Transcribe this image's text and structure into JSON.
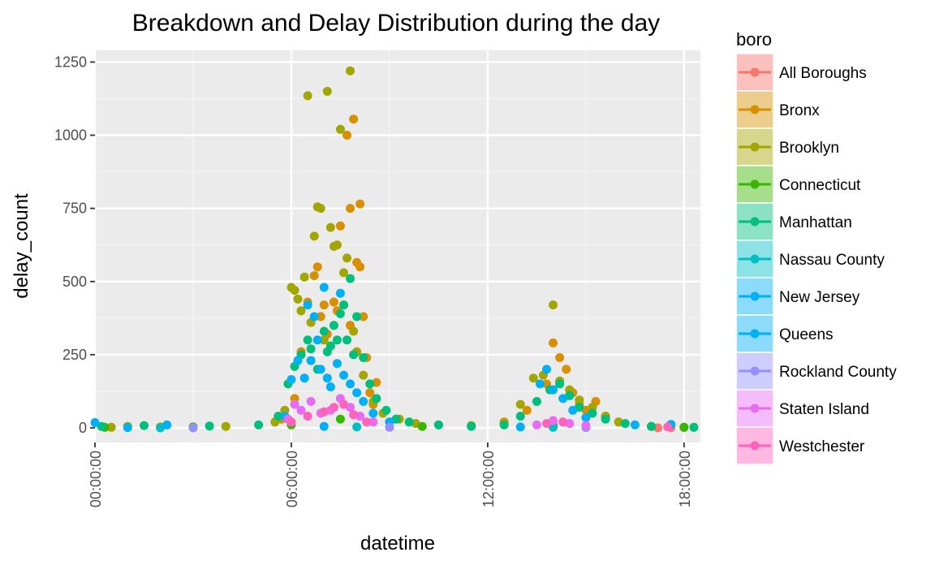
{
  "chart_data": {
    "type": "scatter",
    "title": "Breakdown and Delay Distribution during the day",
    "xlabel": "datetime",
    "ylabel": "delay_count",
    "x_unit": "hours",
    "xlim": [
      0,
      18.5
    ],
    "ylim": [
      -50,
      1290
    ],
    "x_ticks": [
      {
        "value": 0,
        "label": "00:00:00"
      },
      {
        "value": 6,
        "label": "06:00:00"
      },
      {
        "value": 12,
        "label": "12:00:00"
      },
      {
        "value": 18,
        "label": "18:00:00"
      }
    ],
    "y_ticks": [
      {
        "value": 0,
        "label": "0"
      },
      {
        "value": 250,
        "label": "250"
      },
      {
        "value": 500,
        "label": "500"
      },
      {
        "value": 750,
        "label": "750"
      },
      {
        "value": 1000,
        "label": "1000"
      },
      {
        "value": 1250,
        "label": "1250"
      }
    ],
    "grid": true,
    "legend_title": "boro",
    "legend_position": "right",
    "series": [
      {
        "name": "All Boroughs",
        "color": "#F8766D",
        "points": [
          [
            17.2,
            0
          ],
          [
            17.6,
            1
          ],
          [
            18.0,
            2
          ]
        ]
      },
      {
        "name": "Bronx",
        "color": "#D89000",
        "points": [
          [
            5.7,
            30
          ],
          [
            6.1,
            100
          ],
          [
            6.3,
            260
          ],
          [
            6.5,
            430
          ],
          [
            6.7,
            520
          ],
          [
            6.8,
            550
          ],
          [
            6.9,
            380
          ],
          [
            7.0,
            420
          ],
          [
            7.1,
            320
          ],
          [
            7.2,
            280
          ],
          [
            7.3,
            430
          ],
          [
            7.4,
            400
          ],
          [
            7.5,
            690
          ],
          [
            7.6,
            420
          ],
          [
            7.7,
            1000
          ],
          [
            7.8,
            750
          ],
          [
            7.8,
            350
          ],
          [
            7.9,
            1055
          ],
          [
            8.0,
            565
          ],
          [
            8.1,
            765
          ],
          [
            8.1,
            550
          ],
          [
            8.2,
            380
          ],
          [
            8.3,
            240
          ],
          [
            8.4,
            120
          ],
          [
            8.5,
            80
          ],
          [
            8.6,
            155
          ],
          [
            9.0,
            20
          ],
          [
            12.5,
            20
          ],
          [
            13.2,
            60
          ],
          [
            13.8,
            150
          ],
          [
            14.0,
            290
          ],
          [
            14.2,
            240
          ],
          [
            14.4,
            200
          ],
          [
            14.6,
            120
          ],
          [
            14.8,
            80
          ],
          [
            15.0,
            60
          ],
          [
            15.3,
            90
          ],
          [
            15.6,
            40
          ],
          [
            16.0,
            20
          ]
        ]
      },
      {
        "name": "Brooklyn",
        "color": "#A3A500",
        "points": [
          [
            0.5,
            2
          ],
          [
            1.0,
            5
          ],
          [
            2.0,
            3
          ],
          [
            4.0,
            5
          ],
          [
            5.5,
            20
          ],
          [
            5.8,
            60
          ],
          [
            6.0,
            480
          ],
          [
            6.1,
            470
          ],
          [
            6.2,
            440
          ],
          [
            6.3,
            400
          ],
          [
            6.4,
            515
          ],
          [
            6.5,
            1135
          ],
          [
            6.6,
            360
          ],
          [
            6.7,
            655
          ],
          [
            6.8,
            755
          ],
          [
            6.9,
            750
          ],
          [
            7.0,
            300
          ],
          [
            7.1,
            1150
          ],
          [
            7.2,
            685
          ],
          [
            7.3,
            620
          ],
          [
            7.4,
            625
          ],
          [
            7.5,
            1020
          ],
          [
            7.6,
            530
          ],
          [
            7.7,
            580
          ],
          [
            7.8,
            1220
          ],
          [
            7.9,
            330
          ],
          [
            8.0,
            260
          ],
          [
            8.2,
            180
          ],
          [
            8.5,
            90
          ],
          [
            8.8,
            50
          ],
          [
            9.3,
            30
          ],
          [
            9.8,
            15
          ],
          [
            10.5,
            10
          ],
          [
            11.5,
            8
          ],
          [
            12.5,
            15
          ],
          [
            13.0,
            80
          ],
          [
            13.4,
            170
          ],
          [
            13.7,
            180
          ],
          [
            14.0,
            420
          ],
          [
            14.2,
            160
          ],
          [
            14.5,
            130
          ],
          [
            14.8,
            95
          ],
          [
            15.2,
            70
          ],
          [
            15.6,
            40
          ],
          [
            16.0,
            20
          ],
          [
            17.0,
            5
          ]
        ]
      },
      {
        "name": "Connecticut",
        "color": "#39B600",
        "points": [
          [
            0.3,
            2
          ],
          [
            3.0,
            3
          ],
          [
            6.0,
            10
          ],
          [
            7.5,
            30
          ],
          [
            10.0,
            5
          ],
          [
            14.0,
            10
          ],
          [
            18.0,
            2
          ]
        ]
      },
      {
        "name": "Manhattan",
        "color": "#00BF7D",
        "points": [
          [
            0.2,
            5
          ],
          [
            1.5,
            8
          ],
          [
            3.5,
            6
          ],
          [
            5.0,
            10
          ],
          [
            5.6,
            40
          ],
          [
            5.9,
            150
          ],
          [
            6.1,
            210
          ],
          [
            6.3,
            250
          ],
          [
            6.5,
            300
          ],
          [
            6.6,
            270
          ],
          [
            6.8,
            200
          ],
          [
            7.0,
            330
          ],
          [
            7.1,
            260
          ],
          [
            7.2,
            280
          ],
          [
            7.3,
            350
          ],
          [
            7.4,
            300
          ],
          [
            7.5,
            390
          ],
          [
            7.6,
            420
          ],
          [
            7.7,
            300
          ],
          [
            7.8,
            510
          ],
          [
            7.9,
            250
          ],
          [
            8.0,
            380
          ],
          [
            8.2,
            240
          ],
          [
            8.4,
            150
          ],
          [
            8.6,
            100
          ],
          [
            8.9,
            60
          ],
          [
            9.2,
            30
          ],
          [
            9.6,
            20
          ],
          [
            10.5,
            10
          ],
          [
            11.5,
            5
          ],
          [
            12.5,
            10
          ],
          [
            13.0,
            40
          ],
          [
            13.5,
            90
          ],
          [
            13.9,
            130
          ],
          [
            14.2,
            150
          ],
          [
            14.5,
            110
          ],
          [
            14.8,
            70
          ],
          [
            15.2,
            50
          ],
          [
            15.6,
            30
          ],
          [
            16.2,
            15
          ],
          [
            17.0,
            5
          ],
          [
            18.3,
            2
          ]
        ]
      },
      {
        "name": "Nassau County",
        "color": "#00BFC4",
        "points": [
          [
            2.0,
            0
          ],
          [
            8.0,
            3
          ],
          [
            14.0,
            2
          ]
        ]
      },
      {
        "name": "New Jersey",
        "color": "#00B0F6",
        "points": [
          [
            1.0,
            1
          ],
          [
            7.0,
            5
          ],
          [
            13.0,
            3
          ]
        ]
      },
      {
        "name": "Queens",
        "color": "#00B0F6",
        "points": [
          [
            0.0,
            18
          ],
          [
            2.2,
            10
          ],
          [
            5.8,
            40
          ],
          [
            6.0,
            165
          ],
          [
            6.2,
            230
          ],
          [
            6.4,
            170
          ],
          [
            6.5,
            420
          ],
          [
            6.6,
            230
          ],
          [
            6.7,
            380
          ],
          [
            6.8,
            300
          ],
          [
            6.9,
            200
          ],
          [
            7.0,
            480
          ],
          [
            7.1,
            170
          ],
          [
            7.2,
            140
          ],
          [
            7.4,
            220
          ],
          [
            7.5,
            460
          ],
          [
            7.6,
            180
          ],
          [
            7.8,
            150
          ],
          [
            8.0,
            120
          ],
          [
            8.2,
            90
          ],
          [
            8.5,
            50
          ],
          [
            9.0,
            20
          ],
          [
            13.6,
            150
          ],
          [
            13.8,
            200
          ],
          [
            14.0,
            130
          ],
          [
            14.3,
            100
          ],
          [
            14.6,
            60
          ],
          [
            15.0,
            35
          ],
          [
            16.5,
            10
          ],
          [
            17.6,
            12
          ]
        ]
      },
      {
        "name": "Rockland County",
        "color": "#9590FF",
        "points": [
          [
            3.0,
            0
          ],
          [
            9.0,
            2
          ],
          [
            15.0,
            1
          ]
        ]
      },
      {
        "name": "Staten Island",
        "color": "#E76BF3",
        "points": [
          [
            5.9,
            30
          ],
          [
            6.1,
            80
          ],
          [
            6.3,
            60
          ],
          [
            6.6,
            90
          ],
          [
            6.9,
            50
          ],
          [
            7.2,
            60
          ],
          [
            7.5,
            100
          ],
          [
            7.8,
            70
          ],
          [
            8.1,
            40
          ],
          [
            8.5,
            20
          ],
          [
            13.5,
            10
          ],
          [
            14.0,
            25
          ],
          [
            14.5,
            15
          ],
          [
            15.0,
            8
          ]
        ]
      },
      {
        "name": "Westchester",
        "color": "#FF62BC",
        "points": [
          [
            6.0,
            20
          ],
          [
            6.5,
            40
          ],
          [
            7.0,
            55
          ],
          [
            7.3,
            70
          ],
          [
            7.6,
            80
          ],
          [
            7.9,
            45
          ],
          [
            8.3,
            20
          ],
          [
            13.8,
            15
          ],
          [
            14.3,
            20
          ],
          [
            17.5,
            3
          ]
        ]
      }
    ]
  }
}
